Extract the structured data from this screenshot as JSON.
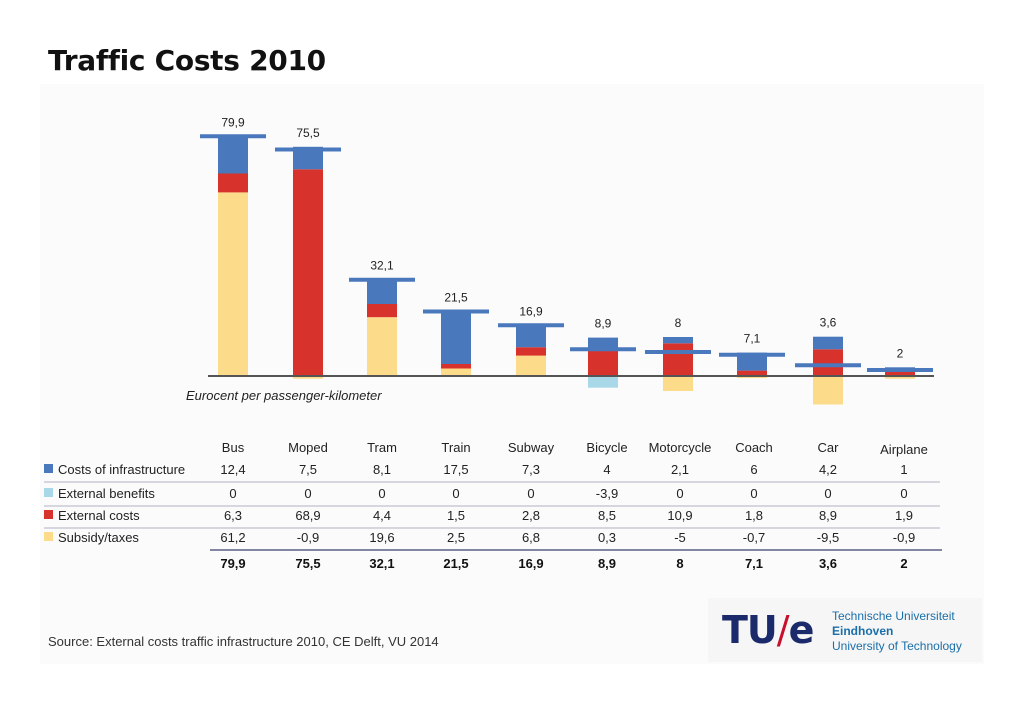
{
  "title": "Traffic Costs 2010",
  "source": "Source: External costs traffic infrastructure 2010, CE Delft, VU 2014",
  "logo": {
    "mark_left": "TU",
    "mark_slash": "/",
    "mark_right": "e",
    "line1": "Technische Universiteit",
    "line2": "Eindhoven",
    "line3": "University of Technology"
  },
  "chart_data": {
    "type": "bar",
    "stacked": true,
    "unit_label": "Eurocent per passenger-kilometer",
    "categories": [
      "Bus",
      "Moped",
      "Tram",
      "Train",
      "Subway",
      "Bicycle",
      "Motorcycle",
      "Coach",
      "Car",
      "Airplane"
    ],
    "series": [
      {
        "name": "Costs of infrastructure",
        "color": "#4a78bd",
        "values": [
          12.4,
          7.5,
          8.1,
          17.5,
          7.3,
          4,
          2.1,
          6,
          4.2,
          1
        ],
        "labels": [
          "12,4",
          "7,5",
          "8,1",
          "17,5",
          "7,3",
          "4",
          "2,1",
          "6",
          "4,2",
          "1"
        ]
      },
      {
        "name": "External benefits",
        "color": "#a9d8e8",
        "values": [
          0,
          0,
          0,
          0,
          0,
          -3.9,
          0,
          0,
          0,
          0
        ],
        "labels": [
          "0",
          "0",
          "0",
          "0",
          "0",
          "-3,9",
          "0",
          "0",
          "0",
          "0"
        ]
      },
      {
        "name": "External costs",
        "color": "#d8322c",
        "values": [
          6.3,
          68.9,
          4.4,
          1.5,
          2.8,
          8.5,
          10.9,
          1.8,
          8.9,
          1.9
        ],
        "labels": [
          "6,3",
          "68,9",
          "4,4",
          "1,5",
          "2,8",
          "8,5",
          "10,9",
          "1,8",
          "8,9",
          "1,9"
        ]
      },
      {
        "name": "Subsidy/taxes",
        "color": "#fcdc8a",
        "values": [
          61.2,
          -0.9,
          19.6,
          2.5,
          6.8,
          0.3,
          -5,
          -0.7,
          -9.5,
          -0.9
        ],
        "labels": [
          "61,2",
          "-0,9",
          "19,6",
          "2,5",
          "6,8",
          "0,3",
          "-5",
          "-0,7",
          "-9,5",
          "-0,9"
        ]
      }
    ],
    "totals": [
      79.9,
      75.5,
      32.1,
      21.5,
      16.9,
      8.9,
      8,
      7.1,
      3.6,
      2
    ],
    "total_labels": [
      "79,9",
      "75,5",
      "32,1",
      "21,5",
      "16,9",
      "8,9",
      "8",
      "7,1",
      "3,6",
      "2"
    ],
    "ylim": [
      -12,
      82
    ],
    "grid": false,
    "legend": "table-below"
  }
}
